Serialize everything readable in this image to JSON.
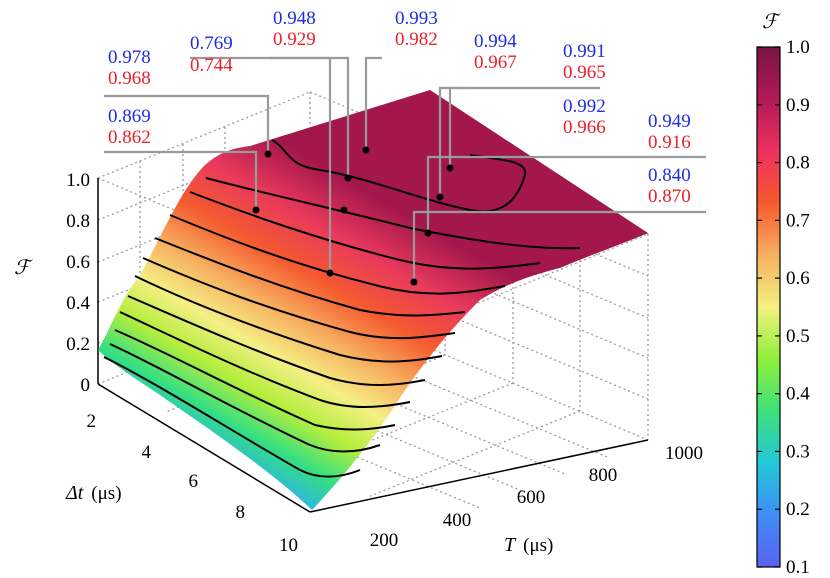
{
  "chart_data": {
    "type": "surface3d",
    "title": "",
    "x_axis": {
      "label_var": "T",
      "label_unit": "(μs)",
      "range": [
        100,
        1000
      ],
      "ticks": [
        "200",
        "400",
        "600",
        "800",
        "1000"
      ]
    },
    "y_axis": {
      "label_var": "Δt",
      "label_unit": "(μs)",
      "range": [
        1,
        10
      ],
      "ticks": [
        "2",
        "4",
        "6",
        "8",
        "10"
      ]
    },
    "z_axis": {
      "label": "ℱ",
      "range": [
        0,
        1
      ],
      "ticks": [
        "0",
        "0.2",
        "0.4",
        "0.6",
        "0.8",
        "1.0"
      ]
    },
    "colorbar": {
      "label": "ℱ",
      "range": [
        0.1,
        1.0
      ],
      "ticks": [
        "0.1",
        "0.2",
        "0.3",
        "0.4",
        "0.5",
        "0.6",
        "0.7",
        "0.8",
        "0.9",
        "1.0"
      ],
      "colors": [
        "#5b62f0",
        "#3f8df5",
        "#22c8d8",
        "#3fe07a",
        "#8ef03a",
        "#f3f080",
        "#f6b060",
        "#f55a2e",
        "#ee3060",
        "#b01a55",
        "#7a1540"
      ]
    },
    "contour_levels": [
      0.2,
      0.3,
      0.4,
      0.5,
      0.6,
      0.7,
      0.8,
      0.9,
      0.95
    ],
    "annotations": [
      {
        "blue": "0.978",
        "red": "0.968"
      },
      {
        "blue": "0.769",
        "red": "0.744"
      },
      {
        "blue": "0.948",
        "red": "0.929"
      },
      {
        "blue": "0.993",
        "red": "0.982"
      },
      {
        "blue": "0.994",
        "red": "0.967"
      },
      {
        "blue": "0.991",
        "red": "0.965"
      },
      {
        "blue": "0.869",
        "red": "0.862"
      },
      {
        "blue": "0.992",
        "red": "0.966"
      },
      {
        "blue": "0.949",
        "red": "0.916"
      },
      {
        "blue": "0.840",
        "red": "0.870"
      }
    ]
  }
}
